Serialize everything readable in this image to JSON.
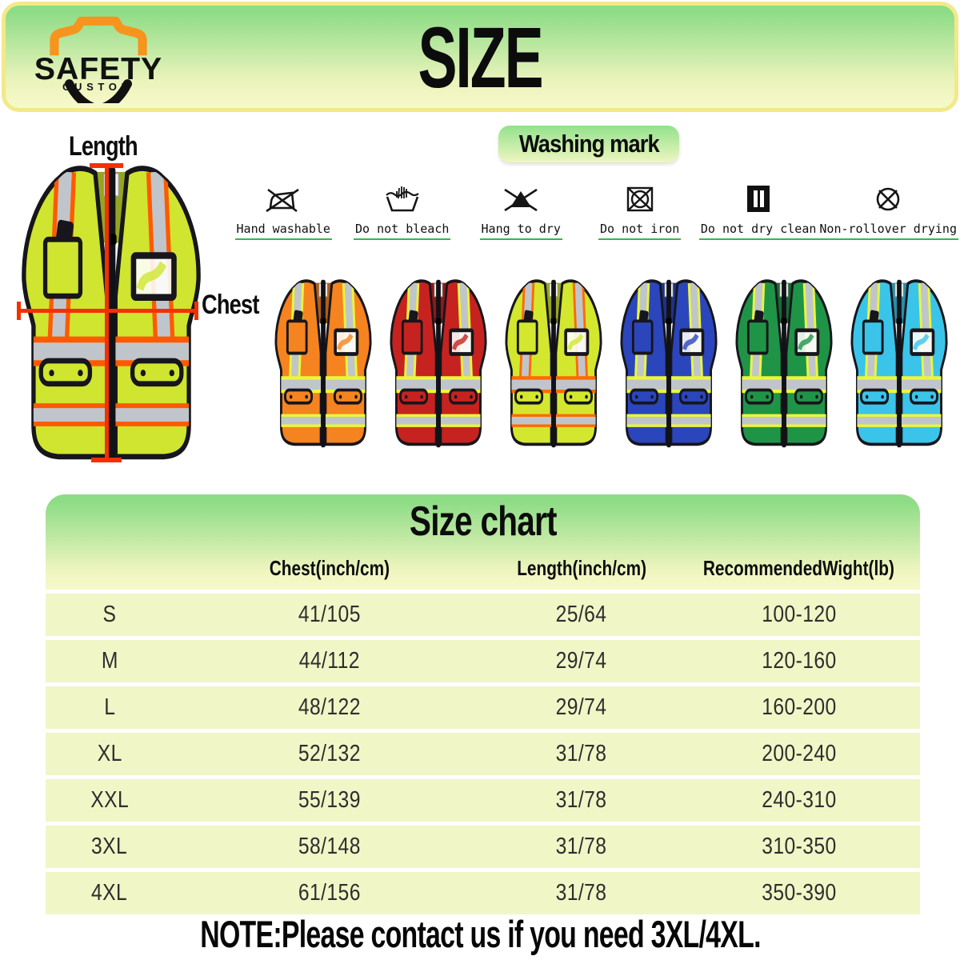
{
  "brand": {
    "line1": "SAFETY",
    "line2": "CUSTOM"
  },
  "header": {
    "title": "SIZE"
  },
  "measure": {
    "length": "Length",
    "chest": "Chest"
  },
  "washing": {
    "title": "Washing mark",
    "marks": [
      {
        "icon": "crossed-iron-icon",
        "label": "Hand washable"
      },
      {
        "icon": "hand-wash-tub-icon",
        "label": "Do not bleach"
      },
      {
        "icon": "crossed-triangle-icon",
        "label": "Hang to dry"
      },
      {
        "icon": "crossed-circle-square-icon",
        "label": "Do not iron"
      },
      {
        "icon": "black-square-bars-icon",
        "label": "Do not dry clean"
      },
      {
        "icon": "crossed-circle-icon",
        "label": "Non-rollover drying"
      }
    ]
  },
  "vests": {
    "main": {
      "name": "yellow-hi-vis",
      "body": "#cfe52f",
      "trim": "#ff5a00"
    },
    "colors": [
      {
        "name": "orange",
        "body": "#f5831f",
        "trim": "#eaf63b"
      },
      {
        "name": "red",
        "body": "#c62320",
        "trim": "#eaf63b"
      },
      {
        "name": "yellow",
        "body": "#d3e72e",
        "trim": "#ff6a00"
      },
      {
        "name": "blue",
        "body": "#2b46bd",
        "trim": "#eaf63b"
      },
      {
        "name": "green",
        "body": "#1f9447",
        "trim": "#eaf63b"
      },
      {
        "name": "cyan",
        "body": "#3bc4e9",
        "trim": "#eaf63b"
      }
    ]
  },
  "size_chart": {
    "title": "Size chart",
    "columns": {
      "chest": "Chest(inch/cm)",
      "length": "Length(inch/cm)",
      "weight": "RecommendedWight(lb)"
    },
    "rows": [
      {
        "size": "S",
        "chest": "41/105",
        "length": "25/64",
        "weight": "100-120"
      },
      {
        "size": "M",
        "chest": "44/112",
        "length": "29/74",
        "weight": "120-160"
      },
      {
        "size": "L",
        "chest": "48/122",
        "length": "29/74",
        "weight": "160-200"
      },
      {
        "size": "XL",
        "chest": "52/132",
        "length": "31/78",
        "weight": "200-240"
      },
      {
        "size": "XXL",
        "chest": "55/139",
        "length": "31/78",
        "weight": "240-310"
      },
      {
        "size": "3XL",
        "chest": "58/148",
        "length": "31/78",
        "weight": "310-350"
      },
      {
        "size": "4XL",
        "chest": "61/156",
        "length": "31/78",
        "weight": "350-390"
      }
    ]
  },
  "note": "NOTE:Please contact us if you need 3XL/4XL.",
  "colors": {
    "banner_border": "#f2e98a",
    "gradient_top": "#8edc86",
    "gradient_bottom": "#f7f9c9",
    "row_bg": "#f0f6c6",
    "underline_green": "#3cb44a",
    "measure_line": "#f53000",
    "silver": "#c0c5cb"
  }
}
